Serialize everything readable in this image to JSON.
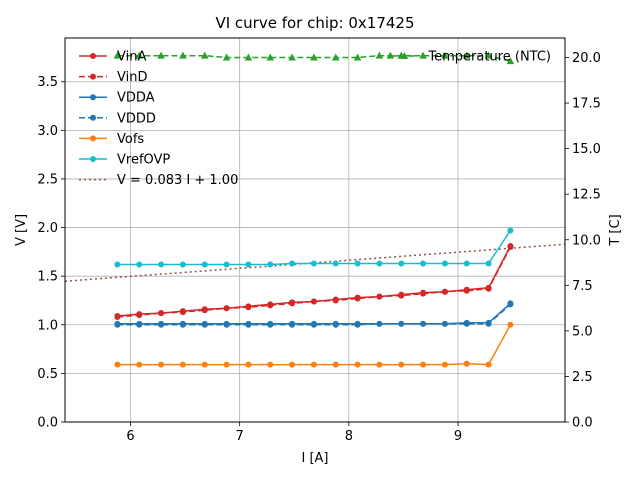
{
  "chart_data": {
    "type": "line",
    "title": "VI curve for chip: 0x17425",
    "xlabel": "I [A]",
    "ylabel": "V [V]",
    "y2label": "T [C]",
    "xlim": [
      5.4,
      9.98
    ],
    "ylim": [
      0.0,
      3.95
    ],
    "y2lim": [
      0.0,
      21.07
    ],
    "xticks": [
      "6",
      "7",
      "8",
      "9"
    ],
    "yticks": [
      "0.0",
      "0.5",
      "1.0",
      "1.5",
      "2.0",
      "2.5",
      "3.0",
      "3.5"
    ],
    "y2ticks": [
      "0.0",
      "2.5",
      "5.0",
      "7.5",
      "10.0",
      "12.5",
      "15.0",
      "17.5",
      "20.0"
    ],
    "grid": true,
    "x": [
      5.88,
      6.08,
      6.28,
      6.48,
      6.68,
      6.88,
      7.08,
      7.28,
      7.48,
      7.68,
      7.88,
      8.08,
      8.28,
      8.48,
      8.68,
      8.88,
      9.08,
      9.28,
      9.48
    ],
    "series": [
      {
        "name": "VinA",
        "color": "#d62728",
        "style": "solid",
        "axis": "left",
        "values": [
          1.09,
          1.11,
          1.12,
          1.14,
          1.16,
          1.17,
          1.19,
          1.21,
          1.23,
          1.24,
          1.26,
          1.28,
          1.29,
          1.31,
          1.33,
          1.34,
          1.36,
          1.38,
          1.81
        ]
      },
      {
        "name": "VinD",
        "color": "#d62728",
        "style": "dashed",
        "axis": "left",
        "values": [
          1.08,
          1.1,
          1.12,
          1.13,
          1.15,
          1.17,
          1.18,
          1.2,
          1.22,
          1.24,
          1.25,
          1.27,
          1.29,
          1.3,
          1.32,
          1.34,
          1.35,
          1.37,
          1.8
        ]
      },
      {
        "name": "VDDA",
        "color": "#1f77b4",
        "style": "solid",
        "axis": "left",
        "values": [
          1.01,
          1.01,
          1.01,
          1.01,
          1.01,
          1.01,
          1.01,
          1.01,
          1.01,
          1.01,
          1.01,
          1.01,
          1.01,
          1.01,
          1.01,
          1.01,
          1.02,
          1.02,
          1.22
        ]
      },
      {
        "name": "VDDD",
        "color": "#1f77b4",
        "style": "dashed",
        "axis": "left",
        "values": [
          1.0,
          1.0,
          1.0,
          1.0,
          1.0,
          1.0,
          1.0,
          1.0,
          1.0,
          1.0,
          1.0,
          1.0,
          1.01,
          1.01,
          1.01,
          1.01,
          1.01,
          1.01,
          1.21
        ]
      },
      {
        "name": "Vofs",
        "color": "#ff7f0e",
        "style": "solid",
        "axis": "left",
        "values": [
          0.59,
          0.59,
          0.59,
          0.59,
          0.59,
          0.59,
          0.59,
          0.59,
          0.59,
          0.59,
          0.59,
          0.59,
          0.59,
          0.59,
          0.59,
          0.59,
          0.6,
          0.59,
          1.0
        ]
      },
      {
        "name": "VrefOVP",
        "color": "#17becf",
        "style": "solid",
        "axis": "left",
        "values": [
          1.62,
          1.62,
          1.62,
          1.62,
          1.62,
          1.62,
          1.62,
          1.62,
          1.63,
          1.63,
          1.63,
          1.63,
          1.63,
          1.63,
          1.63,
          1.63,
          1.63,
          1.63,
          1.97
        ]
      }
    ],
    "temperature": {
      "name": "Temperature (NTC)",
      "color": "#2ca02c",
      "axis": "right",
      "marker": "triangle",
      "x": [
        5.88,
        6.08,
        6.28,
        6.48,
        6.68,
        6.88,
        7.08,
        7.28,
        7.48,
        7.68,
        7.88,
        8.08,
        8.28,
        8.38,
        8.48,
        8.68,
        8.88,
        9.08,
        9.28,
        9.48
      ],
      "values": [
        20.1,
        20.1,
        20.1,
        20.1,
        20.1,
        20.0,
        20.0,
        20.0,
        20.0,
        20.0,
        20.0,
        20.0,
        20.1,
        20.1,
        20.1,
        20.1,
        20.1,
        20.1,
        20.1,
        19.8
      ]
    },
    "fit": {
      "name": "V = 0.083 I + 1.00",
      "slope": 0.083,
      "intercept": 1.0,
      "offset": -0.0,
      "color": "#8c564b",
      "style": "dotted"
    },
    "legend": "upper-left",
    "legend2": "upper-right"
  }
}
